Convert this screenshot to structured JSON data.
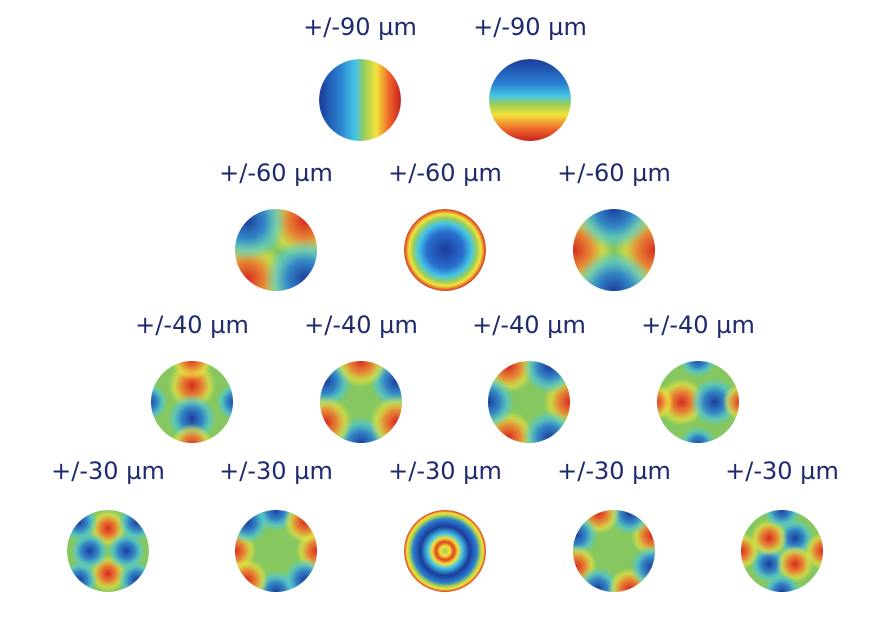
{
  "rows": [
    {
      "items": [
        {
          "label": "+/-90 µm"
        },
        {
          "label": "+/-90 µm"
        }
      ]
    },
    {
      "items": [
        {
          "label": "+/-60 µm"
        },
        {
          "label": "+/-60 µm"
        },
        {
          "label": "+/-60 µm"
        }
      ]
    },
    {
      "items": [
        {
          "label": "+/-40 µm"
        },
        {
          "label": "+/-40 µm"
        },
        {
          "label": "+/-40 µm"
        },
        {
          "label": "+/-40 µm"
        }
      ]
    },
    {
      "items": [
        {
          "label": "+/-30 µm"
        },
        {
          "label": "+/-30 µm"
        },
        {
          "label": "+/-30 µm"
        },
        {
          "label": "+/-30 µm"
        },
        {
          "label": "+/-30 µm"
        }
      ]
    }
  ]
}
